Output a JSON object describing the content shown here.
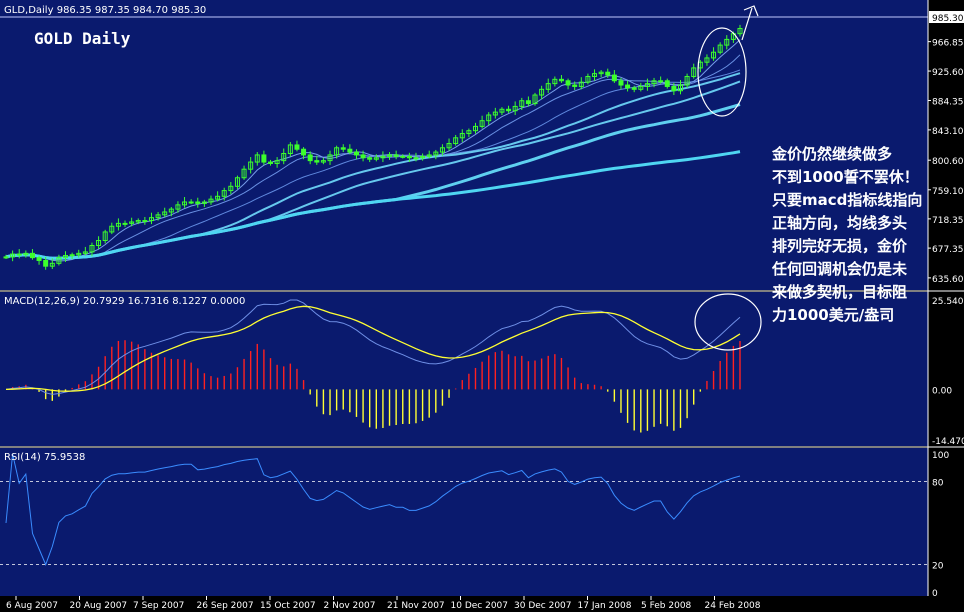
{
  "chart_data": {
    "type": "line",
    "instrument": "GLD,Daily",
    "title": "GOLD Daily",
    "ohlc_header": "986.35 987.35 984.70 985.30",
    "last_price_label": "985.30",
    "x_axis": {
      "tick_labels": [
        "6 Aug 2007",
        "20 Aug 2007",
        "7 Sep 2007",
        "26 Sep 2007",
        "15 Oct 2007",
        "2 Nov 2007",
        "21 Nov 2007",
        "10 Dec 2007",
        "30 Dec 2007",
        "17 Jan 2008",
        "5 Feb 2008",
        "24 Feb 2008"
      ]
    },
    "price_panel": {
      "y_ticks": [
        "966.85",
        "925.60",
        "884.35",
        "843.10",
        "800.60",
        "759.10",
        "718.35",
        "677.35",
        "635.60"
      ],
      "ylim": [
        620,
        1000
      ],
      "close": [
        665,
        669,
        668,
        670,
        664,
        660,
        652,
        656,
        664,
        667,
        668,
        670,
        672,
        681,
        688,
        700,
        708,
        712,
        712,
        714,
        716,
        716,
        720,
        724,
        728,
        732,
        738,
        742,
        742,
        740,
        742,
        746,
        750,
        758,
        764,
        776,
        788,
        798,
        808,
        798,
        796,
        800,
        810,
        822,
        816,
        808,
        800,
        798,
        800,
        808,
        818,
        816,
        812,
        808,
        804,
        802,
        804,
        806,
        808,
        806,
        806,
        804,
        804,
        806,
        808,
        812,
        818,
        824,
        832,
        838,
        842,
        848,
        856,
        864,
        868,
        872,
        870,
        876,
        884,
        880,
        892,
        900,
        908,
        914,
        912,
        906,
        904,
        910,
        918,
        922,
        924,
        920,
        912,
        906,
        902,
        900,
        904,
        908,
        912,
        912,
        904,
        898,
        906,
        918,
        930,
        938,
        944,
        952,
        962,
        970,
        978,
        985.3
      ],
      "moving_averages": [
        {
          "period": 5,
          "color": "#8ab4ff"
        },
        {
          "period": 10,
          "color": "#7aa6f8"
        },
        {
          "period": 20,
          "color": "#6e9cf2"
        },
        {
          "period": 30,
          "color": "#66c8ee"
        },
        {
          "period": 40,
          "color": "#66c8ee"
        },
        {
          "period": 60,
          "color": "#5fd0f0"
        },
        {
          "period": 120,
          "color": "#4fd6f2"
        }
      ]
    },
    "macd_panel": {
      "label": "MACD(12,26,9) 20.7929 16.7316 8.1227 0.0000",
      "y_ticks": [
        "25.5405",
        "0.00",
        "-14.4702"
      ],
      "ylim": [
        -14.4702,
        25.5405
      ]
    },
    "rsi_panel": {
      "label": "RSI(14) 75.9538",
      "y_ticks": [
        "100",
        "80",
        "20",
        "0"
      ],
      "levels": [
        80,
        20
      ]
    },
    "annotation": "金价仍然继续做多\n不到1000誓不罢休！\n只要macd指标线指向\n正轴方向，均线多头\n排列完好无损，金价\n任何回调机会仍是未\n来做多契机，目标阻\n力1000美元/盎司"
  },
  "colors": {
    "panel_bg": "#0a1a6e",
    "grid": "#ffffff",
    "candle": "#3cff2c",
    "macd_line": "#6f8fe6",
    "signal_line": "#ffff33",
    "hist_pos": "#ff2020",
    "hist_neg": "#ffff33",
    "rsi_line": "#3a8cff",
    "axis_text": "#ffffff"
  }
}
